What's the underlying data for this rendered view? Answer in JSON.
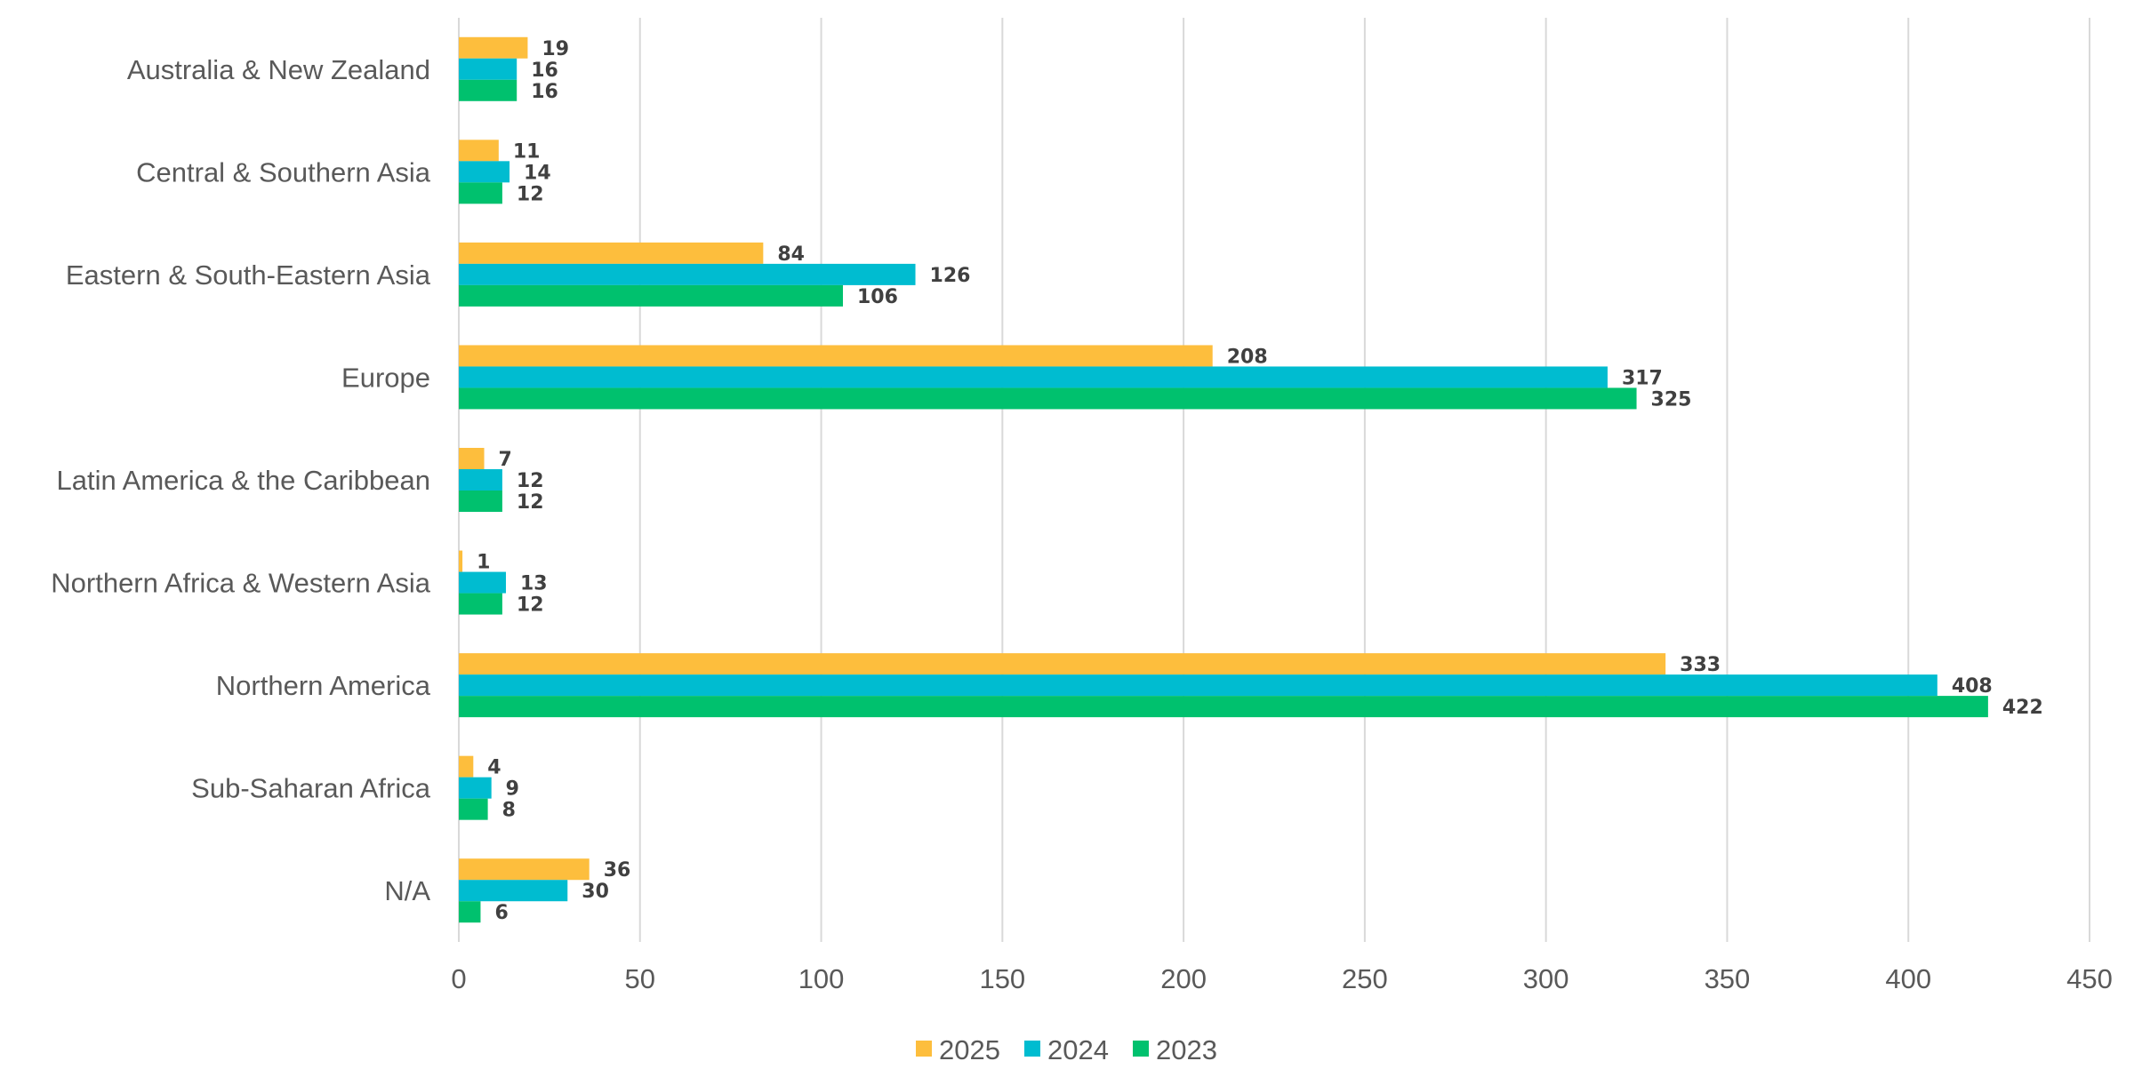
{
  "chart_data": {
    "type": "bar",
    "orientation": "horizontal",
    "categories": [
      "Australia & New Zealand",
      "Central & Southern Asia",
      "Eastern & South-Eastern Asia",
      "Europe",
      "Latin America & the Caribbean",
      "Northern Africa & Western Asia",
      "Northern America",
      "Sub-Saharan Africa",
      "N/A"
    ],
    "series": [
      {
        "name": "2025",
        "color": "#FDBE3D",
        "values": [
          19,
          11,
          84,
          208,
          7,
          1,
          333,
          4,
          36
        ]
      },
      {
        "name": "2024",
        "color": "#00BCD0",
        "values": [
          16,
          14,
          126,
          317,
          12,
          13,
          408,
          9,
          30
        ]
      },
      {
        "name": "2023",
        "color": "#00C16E",
        "values": [
          16,
          12,
          106,
          325,
          12,
          12,
          422,
          8,
          6
        ]
      }
    ],
    "title": "",
    "xlabel": "",
    "ylabel": "",
    "xlim": [
      0,
      450
    ],
    "xticks": [
      0,
      50,
      100,
      150,
      200,
      250,
      300,
      350,
      400,
      450
    ],
    "grid": "vertical",
    "legend_position": "bottom-center"
  }
}
